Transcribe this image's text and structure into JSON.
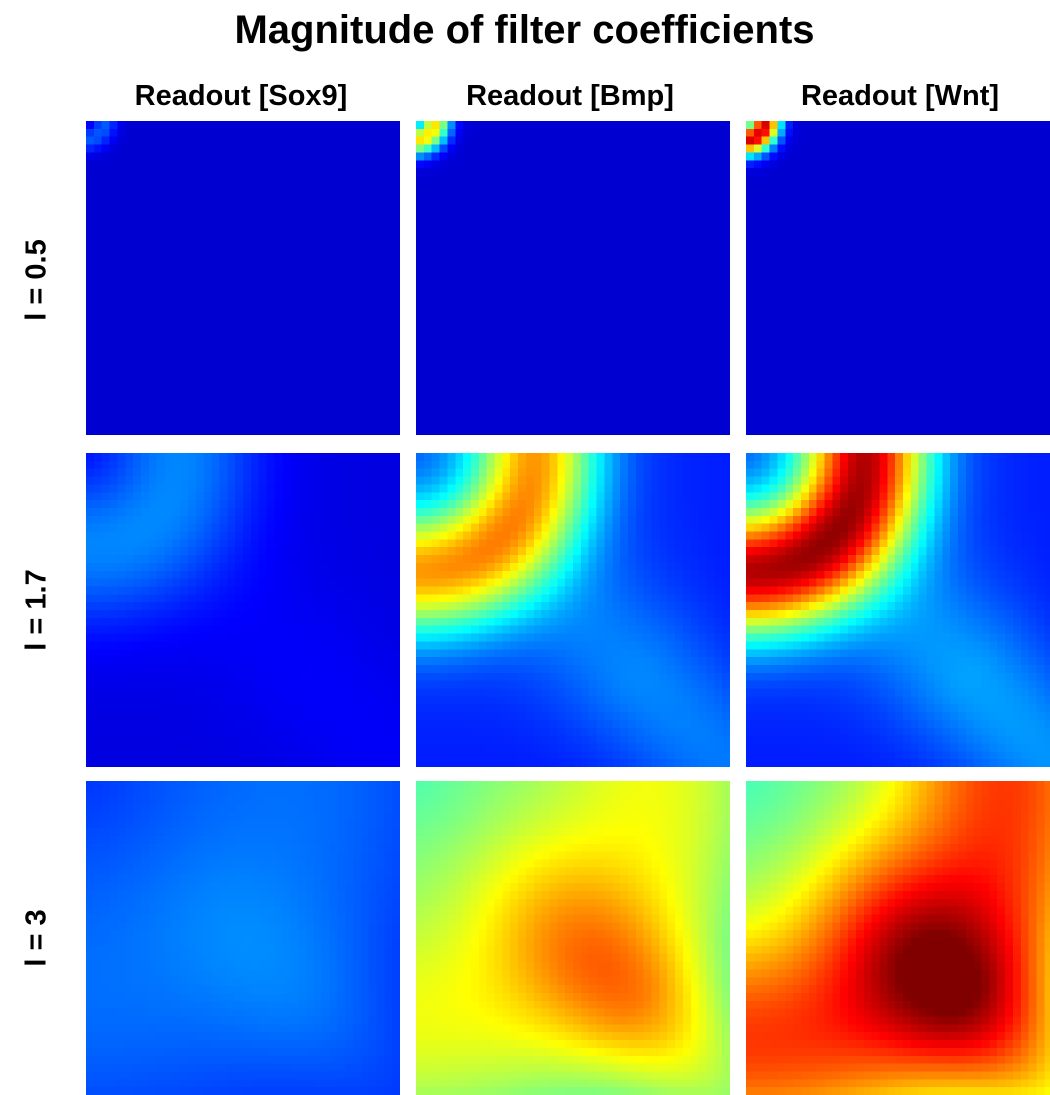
{
  "chart_data": {
    "type": "heatmap",
    "title": "Magnitude of filter coefficients",
    "columns": [
      "Readout [Sox9]",
      "Readout [Bmp]",
      "Readout [Wnt]"
    ],
    "rows": [
      "l = 0.5",
      "l = 1.7",
      "l = 3"
    ],
    "colormap": "jet",
    "grid_cells": 40,
    "panels": [
      [
        {
          "peak_radius": 0.06,
          "band_width": 0.04,
          "peak_level": 0.15,
          "floor": 0.0,
          "diag_tail": 0.0
        },
        {
          "peak_radius": 0.06,
          "band_width": 0.05,
          "peak_level": 0.65,
          "floor": 0.0,
          "diag_tail": 0.0
        },
        {
          "peak_radius": 0.06,
          "band_width": 0.05,
          "peak_level": 0.95,
          "floor": 0.0,
          "diag_tail": 0.0
        }
      ],
      [
        {
          "peak_radius": 0.3,
          "band_width": 0.25,
          "peak_level": 0.2,
          "floor": 0.03,
          "diag_tail": 0.03
        },
        {
          "peak_radius": 0.38,
          "band_width": 0.2,
          "peak_level": 0.75,
          "floor": 0.15,
          "diag_tail": 0.12
        },
        {
          "peak_radius": 0.38,
          "band_width": 0.2,
          "peak_level": 1.0,
          "floor": 0.15,
          "diag_tail": 0.15
        }
      ],
      [
        {
          "peak_radius": 0.7,
          "band_width": 0.6,
          "peak_level": 0.2,
          "floor": 0.08,
          "diag_tail": 0.05
        },
        {
          "peak_radius": 0.8,
          "band_width": 0.5,
          "peak_level": 0.75,
          "floor": 0.4,
          "diag_tail": 0.25
        },
        {
          "peak_radius": 0.85,
          "band_width": 0.45,
          "peak_level": 1.0,
          "floor": 0.4,
          "diag_tail": 0.3
        }
      ]
    ]
  }
}
